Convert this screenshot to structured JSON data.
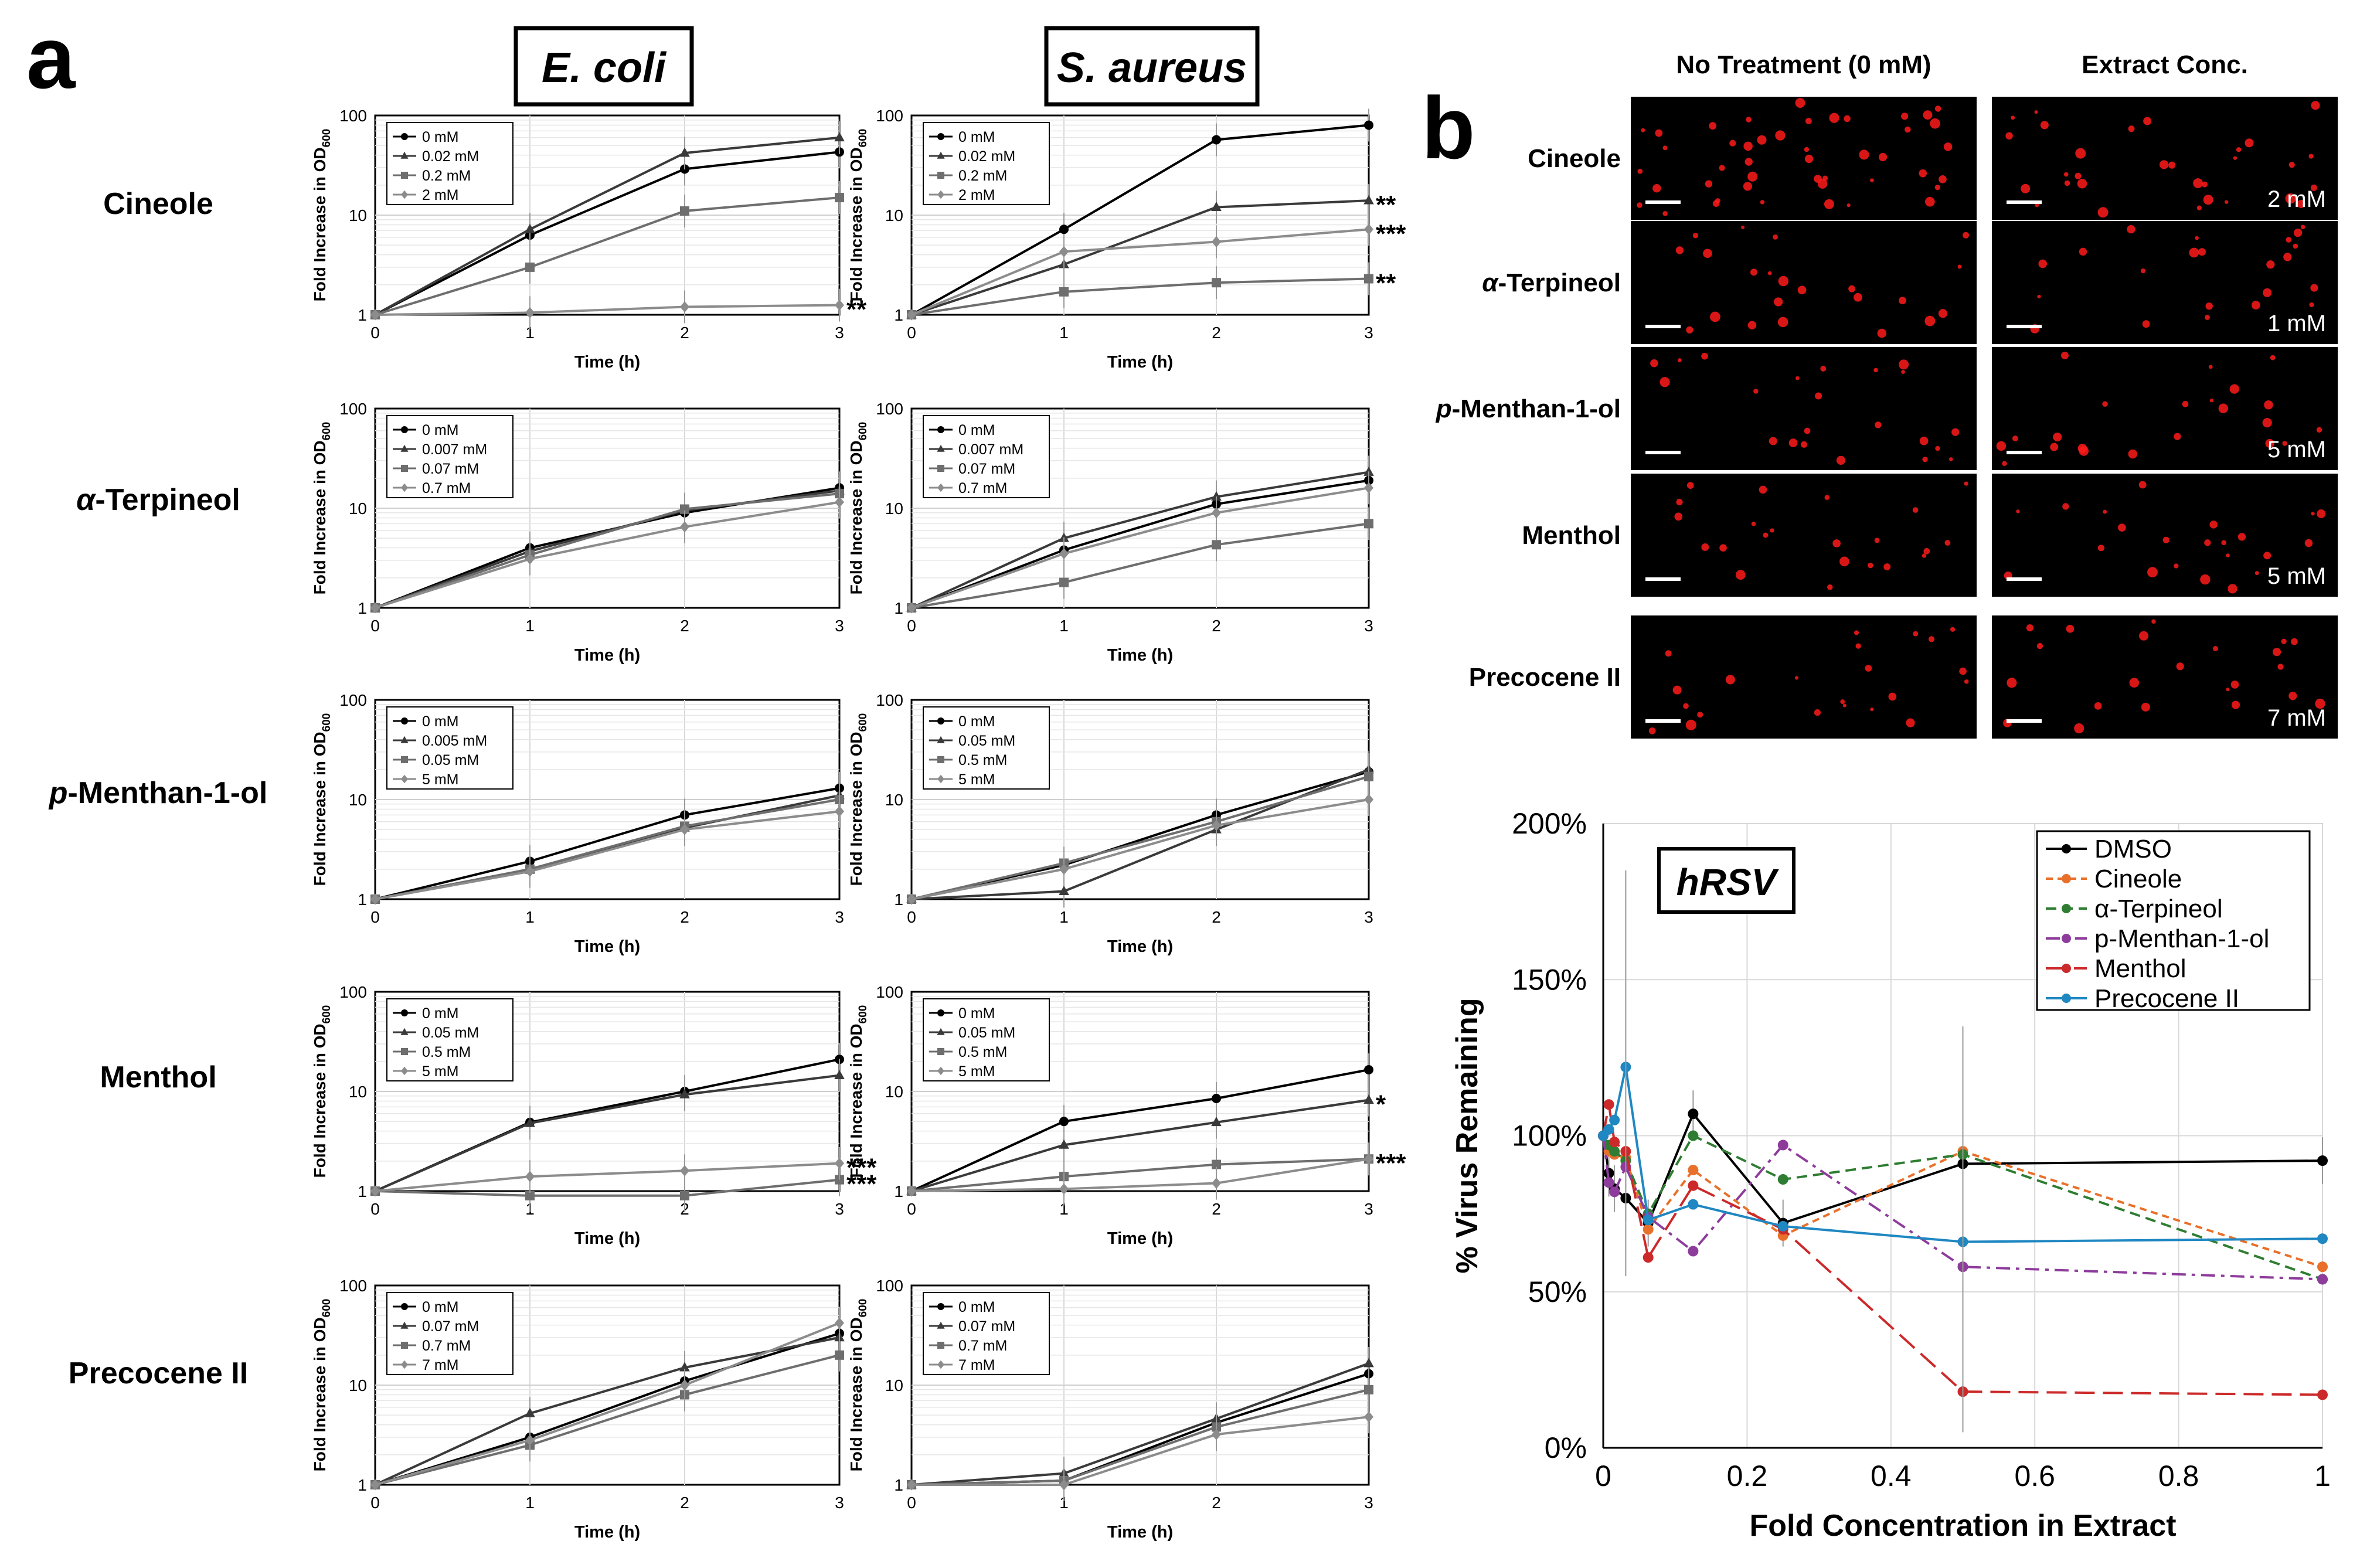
{
  "panel_labels": {
    "a": "a",
    "b": "b"
  },
  "organisms": [
    {
      "text": "E. coli",
      "italic": true
    },
    {
      "text": "S. aureus",
      "italic": true
    }
  ],
  "compounds": [
    {
      "italic_prefix": "",
      "text": "Cineole"
    },
    {
      "italic_prefix": "α",
      "text": "-Terpineol"
    },
    {
      "italic_prefix": "p",
      "text": "-Menthan-1-ol"
    },
    {
      "italic_prefix": "",
      "text": "Menthol"
    },
    {
      "italic_prefix": "",
      "text": "Precocene II"
    }
  ],
  "growth_axis": {
    "xlabel": "Time (h)",
    "ylabel": "Fold Increase in OD",
    "ylabel_subscript": "600",
    "x_ticks": [
      "0",
      "1",
      "2",
      "3"
    ],
    "y_ticks": [
      "1",
      "10",
      "100"
    ],
    "ylim": [
      1,
      100
    ],
    "xlim": [
      0,
      3
    ],
    "y_scale": "log",
    "grid": true,
    "legend_position": "top-left"
  },
  "growth_series_style": [
    {
      "color": "#000000",
      "marker": "circle"
    },
    {
      "color": "#3a3a3a",
      "marker": "triangle"
    },
    {
      "color": "#6e6e6e",
      "marker": "square"
    },
    {
      "color": "#8c8c8c",
      "marker": "diamond"
    }
  ],
  "chart_data": [
    {
      "type": "line",
      "id": "ecoli-cineole",
      "x": [
        0,
        1,
        2,
        3
      ],
      "y_scale": "log",
      "series": [
        {
          "name": "0 mM",
          "values": [
            1,
            6.3,
            29,
            43
          ]
        },
        {
          "name": "0.02 mM",
          "values": [
            1,
            7.2,
            42,
            60
          ]
        },
        {
          "name": "0.2 mM",
          "values": [
            1,
            3,
            11,
            15
          ]
        },
        {
          "name": "2 mM",
          "values": [
            1,
            1.05,
            1.2,
            1.25
          ]
        }
      ],
      "annotations": [
        {
          "text": "**",
          "series": 3
        }
      ]
    },
    {
      "type": "line",
      "id": "saureus-cineole",
      "x": [
        0,
        1,
        2,
        3
      ],
      "y_scale": "log",
      "series": [
        {
          "name": "0 mM",
          "values": [
            1,
            7.2,
            57,
            80
          ]
        },
        {
          "name": "0.02 mM",
          "values": [
            1,
            3.2,
            12,
            14
          ]
        },
        {
          "name": "0.2 mM",
          "values": [
            1,
            1.7,
            2.1,
            2.3
          ]
        },
        {
          "name": "2 mM",
          "values": [
            1,
            4.3,
            5.4,
            7.2
          ]
        }
      ],
      "annotations": [
        {
          "text": "**",
          "series": 1
        },
        {
          "text": "***",
          "series": 3
        },
        {
          "text": "**",
          "series": 2
        }
      ]
    },
    {
      "type": "line",
      "id": "ecoli-terpineol",
      "x": [
        0,
        1,
        2,
        3
      ],
      "y_scale": "log",
      "series": [
        {
          "name": "0 mM",
          "values": [
            1,
            4,
            9,
            16
          ]
        },
        {
          "name": "0.007 mM",
          "values": [
            1,
            3.7,
            9.5,
            15
          ]
        },
        {
          "name": "0.07 mM",
          "values": [
            1,
            3.4,
            9.8,
            14
          ]
        },
        {
          "name": "0.7 mM",
          "values": [
            1,
            3.1,
            6.5,
            11.5
          ]
        }
      ],
      "annotations": []
    },
    {
      "type": "line",
      "id": "saureus-terpineol",
      "x": [
        0,
        1,
        2,
        3
      ],
      "y_scale": "log",
      "series": [
        {
          "name": "0 mM",
          "values": [
            1,
            3.8,
            11,
            19
          ]
        },
        {
          "name": "0.007 mM",
          "values": [
            1,
            5,
            13,
            23
          ]
        },
        {
          "name": "0.07 mM",
          "values": [
            1,
            1.8,
            4.3,
            7
          ]
        },
        {
          "name": "0.7 mM",
          "values": [
            1,
            3.5,
            9,
            16
          ]
        }
      ],
      "annotations": []
    },
    {
      "type": "line",
      "id": "ecoli-menthanol",
      "x": [
        0,
        1,
        2,
        3
      ],
      "y_scale": "log",
      "series": [
        {
          "name": "0 mM",
          "values": [
            1,
            2.4,
            7,
            13
          ]
        },
        {
          "name": "0.005 mM",
          "values": [
            1,
            2,
            5.2,
            11
          ]
        },
        {
          "name": "0.05 mM",
          "values": [
            1,
            2,
            5.4,
            10
          ]
        },
        {
          "name": "5 mM",
          "values": [
            1,
            1.9,
            5,
            7.6
          ]
        }
      ],
      "annotations": []
    },
    {
      "type": "line",
      "id": "saureus-menthanol",
      "x": [
        0,
        1,
        2,
        3
      ],
      "y_scale": "log",
      "series": [
        {
          "name": "0 mM",
          "values": [
            1,
            2.2,
            7,
            19
          ]
        },
        {
          "name": "0.05 mM",
          "values": [
            1,
            1.2,
            5,
            20
          ]
        },
        {
          "name": "0.5 mM",
          "values": [
            1,
            2.3,
            6,
            17
          ]
        },
        {
          "name": "5 mM",
          "values": [
            1,
            2,
            5.5,
            10
          ]
        }
      ],
      "annotations": []
    },
    {
      "type": "line",
      "id": "ecoli-menthol",
      "x": [
        0,
        1,
        2,
        3
      ],
      "y_scale": "log",
      "series": [
        {
          "name": "0 mM",
          "values": [
            1,
            4.9,
            10,
            21
          ]
        },
        {
          "name": "0.05 mM",
          "values": [
            1,
            4.8,
            9.3,
            14.5
          ]
        },
        {
          "name": "0.5 mM",
          "values": [
            1,
            0.9,
            0.9,
            1.3
          ]
        },
        {
          "name": "5 mM",
          "values": [
            1,
            1.4,
            1.6,
            1.9
          ]
        }
      ],
      "annotations": [
        {
          "text": "***",
          "series": 3
        },
        {
          "text": "***",
          "series": 2
        }
      ]
    },
    {
      "type": "line",
      "id": "saureus-menthol",
      "x": [
        0,
        1,
        2,
        3
      ],
      "y_scale": "log",
      "series": [
        {
          "name": "0 mM",
          "values": [
            1,
            5,
            8.5,
            16.5
          ]
        },
        {
          "name": "0.05 mM",
          "values": [
            1,
            2.9,
            4.9,
            8.2
          ]
        },
        {
          "name": "0.5 mM",
          "values": [
            1,
            1.4,
            1.85,
            2.1
          ]
        },
        {
          "name": "5 mM",
          "values": [
            1,
            1.05,
            1.2,
            2.1
          ]
        }
      ],
      "annotations": [
        {
          "text": "*",
          "series": 1
        },
        {
          "text": "***",
          "series": 2
        }
      ]
    },
    {
      "type": "line",
      "id": "ecoli-precocene",
      "x": [
        0,
        1,
        2,
        3
      ],
      "y_scale": "log",
      "series": [
        {
          "name": "0 mM",
          "values": [
            1,
            3,
            11,
            33
          ]
        },
        {
          "name": "0.07 mM",
          "values": [
            1,
            5.2,
            15,
            30
          ]
        },
        {
          "name": "0.7 mM",
          "values": [
            1,
            2.5,
            8,
            20
          ]
        },
        {
          "name": "7 mM",
          "values": [
            1,
            2.8,
            10,
            42
          ]
        }
      ],
      "annotations": []
    },
    {
      "type": "line",
      "id": "saureus-precocene",
      "x": [
        0,
        1,
        2,
        3
      ],
      "y_scale": "log",
      "series": [
        {
          "name": "0 mM",
          "values": [
            1,
            1.1,
            4.2,
            13
          ]
        },
        {
          "name": "0.07 mM",
          "values": [
            1,
            1.3,
            4.6,
            16.5
          ]
        },
        {
          "name": "0.7 mM",
          "values": [
            1,
            1.1,
            3.8,
            9
          ]
        },
        {
          "name": "7 mM",
          "values": [
            1,
            1.0,
            3.2,
            4.8
          ]
        }
      ],
      "annotations": []
    },
    {
      "type": "line",
      "id": "hrsv",
      "title": "hRSV",
      "xlabel": "Fold Concentration in Extract",
      "ylabel": "% Virus Remaining",
      "xlim": [
        0,
        1
      ],
      "ylim": [
        0,
        200
      ],
      "x_ticks": [
        "0",
        "0.2",
        "0.4",
        "0.6",
        "0.8",
        "1"
      ],
      "y_ticks": [
        "0%",
        "50%",
        "100%",
        "150%",
        "200%"
      ],
      "grid": true,
      "legend_position": "top-right",
      "x": [
        0,
        0.0078,
        0.0156,
        0.0313,
        0.0625,
        0.125,
        0.25,
        0.5,
        1
      ],
      "series": [
        {
          "name": "DMSO",
          "color": "#000000",
          "dash": "solid",
          "values": [
            100,
            88,
            83,
            80,
            72,
            107,
            72,
            91,
            92
          ]
        },
        {
          "name": "Cineole",
          "color": "#e8702a",
          "dash": "short",
          "values": [
            100,
            95,
            94,
            93,
            70,
            89,
            68,
            95,
            58
          ]
        },
        {
          "name": "α-Terpineol",
          "color": "#2f7d32",
          "dash": "medium",
          "values": [
            100,
            97,
            95,
            92,
            75,
            100,
            86,
            94,
            54
          ]
        },
        {
          "name": "p-Menthan-1-ol",
          "color": "#8e3c9c",
          "dash": "dashdot",
          "values": [
            100,
            85,
            82,
            90,
            74,
            63,
            97,
            58,
            54
          ]
        },
        {
          "name": "Menthol",
          "color": "#cc2a2a",
          "dash": "long",
          "values": [
            100,
            110,
            98,
            95,
            61,
            84,
            70,
            18,
            17
          ]
        },
        {
          "name": "Precocene II",
          "color": "#1f87c2",
          "dash": "solid",
          "values": [
            100,
            102,
            105,
            122,
            73,
            78,
            71,
            66,
            67
          ]
        }
      ]
    }
  ],
  "microscopy": {
    "headers": [
      "No Treatment (0 mM)",
      "Extract Conc."
    ],
    "rows": [
      {
        "label_prefix": "",
        "label": "Cineole",
        "conc": "2 mM"
      },
      {
        "label_prefix": "α",
        "label": "-Terpineol",
        "conc": "1 mM"
      },
      {
        "label_prefix": "p",
        "label": "-Menthan-1-ol",
        "conc": "5 mM"
      },
      {
        "label_prefix": "",
        "label": "Menthol",
        "conc": "5 mM"
      },
      {
        "label_prefix": "",
        "label": "Precocene II",
        "conc": "7 mM"
      }
    ],
    "image_background": "#000000",
    "signal_color": "#ff1a1a"
  }
}
